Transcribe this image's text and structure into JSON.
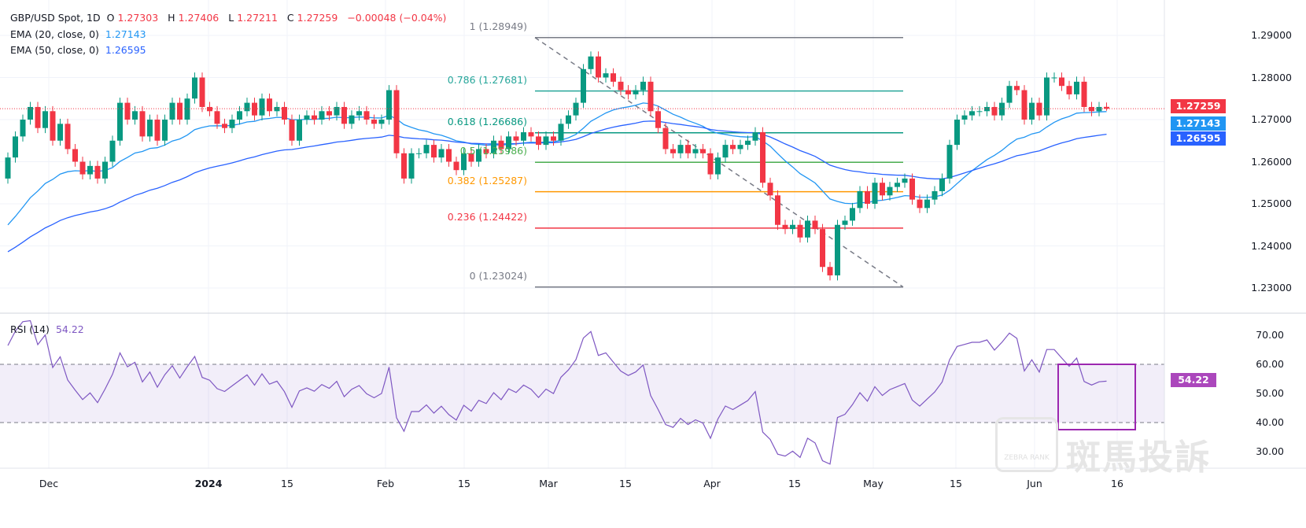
{
  "header": {
    "symbol": "GBP/USD Spot, 1D",
    "open_label": "O",
    "open": "1.27303",
    "high_label": "H",
    "high": "1.27406",
    "low_label": "L",
    "low": "1.27211",
    "close_label": "C",
    "close": "1.27259",
    "change": "−0.00048 (−0.04%)",
    "ema20_label": "EMA (20, close, 0)",
    "ema20_value": "1.27143",
    "ema50_label": "EMA (50, close, 0)",
    "ema50_value": "1.26595"
  },
  "price_axis": {
    "ticks": [
      "1.29000",
      "1.28000",
      "1.27000",
      "1.26000",
      "1.25000",
      "1.24000",
      "1.23000"
    ],
    "last_price": "1.27259",
    "ema20_tag": "1.27143",
    "ema50_tag": "1.26595"
  },
  "rsi": {
    "label": "RSI (14)",
    "value": "54.22",
    "ticks": [
      "70.00",
      "60.00",
      "50.00",
      "40.00",
      "30.00"
    ],
    "upper": 60,
    "lower": 40
  },
  "time_axis": [
    "Dec",
    "2024",
    "15",
    "Feb",
    "15",
    "Mar",
    "15",
    "Apr",
    "15",
    "May",
    "15",
    "Jun",
    "16"
  ],
  "fib": {
    "levels": [
      {
        "ratio": "1",
        "price": 1.28949,
        "label": "1 (1.28949)",
        "color": "#787b86"
      },
      {
        "ratio": "0.786",
        "price": 1.27681,
        "label": "0.786 (1.27681)",
        "color": "#26a69a"
      },
      {
        "ratio": "0.618",
        "price": 1.26686,
        "label": "0.618 (1.26686)",
        "color": "#089981"
      },
      {
        "ratio": "0.5",
        "price": 1.25986,
        "label": "0.5 (1.25986)",
        "color": "#4caf50"
      },
      {
        "ratio": "0.382",
        "price": 1.25287,
        "label": "0.382 (1.25287)",
        "color": "#ff9800"
      },
      {
        "ratio": "0.236",
        "price": 1.24422,
        "label": "0.236 (1.24422)",
        "color": "#f23645"
      },
      {
        "ratio": "0",
        "price": 1.23024,
        "label": "0 (1.23024)",
        "color": "#787b86"
      }
    ]
  },
  "colors": {
    "up": "#089981",
    "down": "#f23645",
    "ema20": "#2196f3",
    "ema50": "#2962ff",
    "rsi": "#7e57c2",
    "box": "#9c27b0"
  },
  "watermark": {
    "text": "斑馬投訴",
    "logo": "ZEBRA RANK"
  },
  "chart_data": {
    "type": "candlestick",
    "title": "GBP/USD Spot, 1D",
    "ylim": [
      1.225,
      1.2925
    ],
    "ema_seed": {
      "ema20": 1.2433,
      "ema50": 1.2377
    },
    "close": [
      1.261,
      1.266,
      1.27,
      1.273,
      1.268,
      1.272,
      1.265,
      1.269,
      1.263,
      1.26,
      1.257,
      1.259,
      1.256,
      1.26,
      1.265,
      1.274,
      1.27,
      1.272,
      1.266,
      1.27,
      1.265,
      1.27,
      1.274,
      1.27,
      1.275,
      1.28,
      1.273,
      1.272,
      1.269,
      1.268,
      1.27,
      1.272,
      1.274,
      1.271,
      1.275,
      1.272,
      1.273,
      1.27,
      1.265,
      1.27,
      1.271,
      1.27,
      1.272,
      1.271,
      1.273,
      1.269,
      1.271,
      1.272,
      1.27,
      1.269,
      1.27,
      1.277,
      1.262,
      1.256,
      1.262,
      1.262,
      1.264,
      1.261,
      1.263,
      1.26,
      1.258,
      1.262,
      1.26,
      1.263,
      1.262,
      1.265,
      1.263,
      1.266,
      1.265,
      1.267,
      1.266,
      1.264,
      1.266,
      1.265,
      1.269,
      1.271,
      1.274,
      1.282,
      1.285,
      1.28,
      1.281,
      1.279,
      1.277,
      1.276,
      1.277,
      1.279,
      1.272,
      1.268,
      1.263,
      1.262,
      1.264,
      1.262,
      1.263,
      1.262,
      1.257,
      1.261,
      1.264,
      1.263,
      1.264,
      1.265,
      1.267,
      1.255,
      1.252,
      1.245,
      1.244,
      1.245,
      1.242,
      1.246,
      1.244,
      1.235,
      1.233,
      1.245,
      1.246,
      1.249,
      1.253,
      1.25,
      1.255,
      1.252,
      1.254,
      1.255,
      1.256,
      1.251,
      1.249,
      1.251,
      1.253,
      1.256,
      1.264,
      1.27,
      1.271,
      1.272,
      1.272,
      1.273,
      1.271,
      1.274,
      1.278,
      1.277,
      1.27,
      1.274,
      1.271,
      1.28,
      1.28,
      1.278,
      1.276,
      1.279,
      1.273,
      1.272,
      1.273,
      1.2726
    ],
    "first_open": 1.256,
    "last_open": 1.27303,
    "last_high": 1.27406,
    "last_low": 1.27211,
    "wick": 0.0012,
    "rsi_range": [
      25,
      75
    ]
  }
}
